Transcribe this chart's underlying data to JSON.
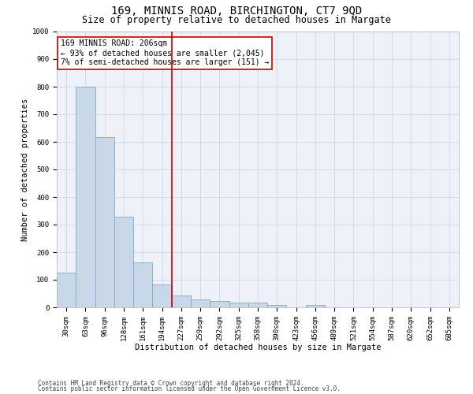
{
  "title1": "169, MINNIS ROAD, BIRCHINGTON, CT7 9QD",
  "title2": "Size of property relative to detached houses in Margate",
  "xlabel": "Distribution of detached houses by size in Margate",
  "ylabel": "Number of detached properties",
  "categories": [
    "30sqm",
    "63sqm",
    "96sqm",
    "128sqm",
    "161sqm",
    "194sqm",
    "227sqm",
    "259sqm",
    "292sqm",
    "325sqm",
    "358sqm",
    "390sqm",
    "423sqm",
    "456sqm",
    "489sqm",
    "521sqm",
    "554sqm",
    "587sqm",
    "620sqm",
    "652sqm",
    "685sqm"
  ],
  "values": [
    125,
    800,
    618,
    330,
    162,
    82,
    42,
    28,
    22,
    18,
    16,
    8,
    0,
    9,
    0,
    0,
    0,
    0,
    0,
    0,
    0
  ],
  "bar_color": "#c8d8e8",
  "bar_edge_color": "#7aaac8",
  "vline_x": 5.5,
  "vline_color": "#cc0000",
  "annotation_line1": "169 MINNIS ROAD: 206sqm",
  "annotation_line2": "← 93% of detached houses are smaller (2,045)",
  "annotation_line3": "7% of semi-detached houses are larger (151) →",
  "annotation_box_color": "#ffffff",
  "annotation_box_edge_color": "#cc0000",
  "ylim": [
    0,
    1000
  ],
  "yticks": [
    0,
    100,
    200,
    300,
    400,
    500,
    600,
    700,
    800,
    900,
    1000
  ],
  "footer1": "Contains HM Land Registry data © Crown copyright and database right 2024.",
  "footer2": "Contains public sector information licensed under the Open Government Licence v3.0.",
  "bg_color": "#ffffff",
  "plot_bg_color": "#eef2f8",
  "grid_color": "#d0d8e8",
  "title1_fontsize": 10,
  "title2_fontsize": 8.5,
  "tick_fontsize": 6.5,
  "axis_label_fontsize": 7.5,
  "annotation_fontsize": 7,
  "footer_fontsize": 5.5
}
